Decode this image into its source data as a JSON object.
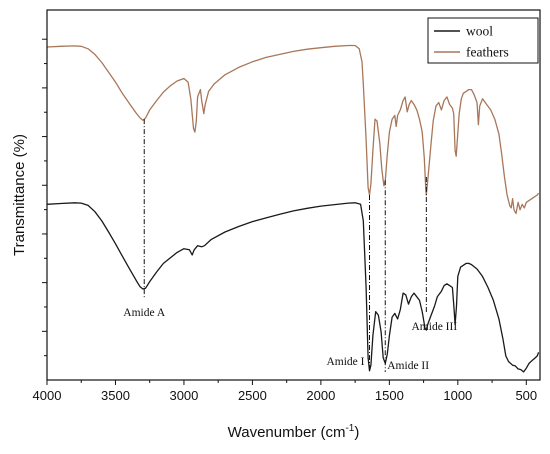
{
  "chart_data": {
    "type": "line",
    "xlabel": "Wavenumber (cm",
    "xlabel_sup": "-1",
    "xlabel_end": ")",
    "ylabel": "Transmittance (%)",
    "xlim": [
      4000,
      400
    ],
    "x_reversed": true,
    "x_ticks": [
      4000,
      3500,
      3000,
      2500,
      2000,
      1500,
      1000,
      500
    ],
    "y_ticks_labeled": false,
    "legend": {
      "position": "top-right"
    },
    "colors": {
      "wool": "#1a1a1a",
      "feathers": "#a8775a",
      "axis": "#111111"
    },
    "series": [
      {
        "name": "wool",
        "y_units": "relative transmittance (arbitrary, 0-100 plot scale)",
        "points": [
          [
            4000,
            47.5
          ],
          [
            3900,
            47.7
          ],
          [
            3800,
            47.9
          ],
          [
            3750,
            47.8
          ],
          [
            3700,
            47.2
          ],
          [
            3650,
            45.5
          ],
          [
            3600,
            43.0
          ],
          [
            3550,
            40.0
          ],
          [
            3500,
            36.8
          ],
          [
            3450,
            33.5
          ],
          [
            3400,
            30.2
          ],
          [
            3350,
            27.0
          ],
          [
            3320,
            25.2
          ],
          [
            3300,
            24.6
          ],
          [
            3280,
            24.8
          ],
          [
            3250,
            26.6
          ],
          [
            3200,
            29.2
          ],
          [
            3150,
            31.5
          ],
          [
            3100,
            33.0
          ],
          [
            3050,
            34.5
          ],
          [
            3000,
            35.5
          ],
          [
            2960,
            35.2
          ],
          [
            2940,
            33.8
          ],
          [
            2925,
            35.2
          ],
          [
            2900,
            36.3
          ],
          [
            2870,
            36.0
          ],
          [
            2850,
            36.3
          ],
          [
            2800,
            38.0
          ],
          [
            2700,
            40.0
          ],
          [
            2600,
            41.5
          ],
          [
            2500,
            42.8
          ],
          [
            2400,
            43.8
          ],
          [
            2300,
            44.8
          ],
          [
            2200,
            45.7
          ],
          [
            2100,
            46.4
          ],
          [
            2000,
            47.0
          ],
          [
            1900,
            47.4
          ],
          [
            1800,
            47.8
          ],
          [
            1750,
            47.9
          ],
          [
            1710,
            47.5
          ],
          [
            1690,
            43.0
          ],
          [
            1670,
            25.0
          ],
          [
            1655,
            6.0
          ],
          [
            1645,
            2.5
          ],
          [
            1635,
            4.0
          ],
          [
            1620,
            12.0
          ],
          [
            1600,
            18.5
          ],
          [
            1580,
            17.5
          ],
          [
            1560,
            13.0
          ],
          [
            1545,
            6.0
          ],
          [
            1530,
            4.5
          ],
          [
            1515,
            7.0
          ],
          [
            1500,
            12.0
          ],
          [
            1480,
            17.0
          ],
          [
            1460,
            18.0
          ],
          [
            1440,
            16.5
          ],
          [
            1420,
            19.0
          ],
          [
            1400,
            23.5
          ],
          [
            1380,
            23.0
          ],
          [
            1360,
            20.5
          ],
          [
            1340,
            22.5
          ],
          [
            1320,
            23.5
          ],
          [
            1300,
            22.5
          ],
          [
            1280,
            21.5
          ],
          [
            1260,
            18.5
          ],
          [
            1240,
            14.0
          ],
          [
            1230,
            13.5
          ],
          [
            1220,
            15.0
          ],
          [
            1200,
            17.0
          ],
          [
            1170,
            20.0
          ],
          [
            1150,
            22.5
          ],
          [
            1120,
            24.0
          ],
          [
            1100,
            25.5
          ],
          [
            1080,
            26.0
          ],
          [
            1060,
            25.5
          ],
          [
            1040,
            25.0
          ],
          [
            1030,
            20.5
          ],
          [
            1020,
            15.0
          ],
          [
            1010,
            20.0
          ],
          [
            1000,
            28.0
          ],
          [
            980,
            30.5
          ],
          [
            960,
            31.0
          ],
          [
            940,
            31.5
          ],
          [
            920,
            31.5
          ],
          [
            900,
            31.2
          ],
          [
            860,
            30.0
          ],
          [
            820,
            28.0
          ],
          [
            780,
            25.0
          ],
          [
            740,
            21.5
          ],
          [
            700,
            16.5
          ],
          [
            670,
            11.0
          ],
          [
            650,
            6.5
          ],
          [
            630,
            5.0
          ],
          [
            600,
            4.0
          ],
          [
            580,
            3.8
          ],
          [
            560,
            3.0
          ],
          [
            540,
            2.8
          ],
          [
            520,
            2.2
          ],
          [
            500,
            3.2
          ],
          [
            480,
            4.5
          ],
          [
            460,
            5.2
          ],
          [
            440,
            5.8
          ],
          [
            420,
            6.5
          ],
          [
            410,
            7.5
          ]
        ]
      },
      {
        "name": "feathers",
        "y_units": "relative transmittance (arbitrary, 0-100 plot scale)",
        "points": [
          [
            4000,
            90.0
          ],
          [
            3900,
            90.2
          ],
          [
            3800,
            90.3
          ],
          [
            3750,
            90.2
          ],
          [
            3700,
            89.5
          ],
          [
            3650,
            88.0
          ],
          [
            3600,
            85.8
          ],
          [
            3550,
            83.2
          ],
          [
            3500,
            80.5
          ],
          [
            3450,
            77.5
          ],
          [
            3400,
            74.8
          ],
          [
            3350,
            72.2
          ],
          [
            3320,
            70.8
          ],
          [
            3300,
            70.2
          ],
          [
            3280,
            70.8
          ],
          [
            3250,
            73.0
          ],
          [
            3200,
            75.5
          ],
          [
            3150,
            77.8
          ],
          [
            3100,
            79.5
          ],
          [
            3050,
            80.8
          ],
          [
            3000,
            81.5
          ],
          [
            2970,
            80.5
          ],
          [
            2950,
            76.0
          ],
          [
            2930,
            68.0
          ],
          [
            2920,
            67.0
          ],
          [
            2910,
            70.0
          ],
          [
            2900,
            76.5
          ],
          [
            2880,
            78.5
          ],
          [
            2870,
            75.5
          ],
          [
            2855,
            72.0
          ],
          [
            2845,
            74.5
          ],
          [
            2820,
            78.0
          ],
          [
            2780,
            80.0
          ],
          [
            2700,
            82.5
          ],
          [
            2600,
            84.5
          ],
          [
            2500,
            86.0
          ],
          [
            2400,
            87.2
          ],
          [
            2300,
            88.0
          ],
          [
            2200,
            88.8
          ],
          [
            2100,
            89.4
          ],
          [
            2000,
            89.8
          ],
          [
            1900,
            90.2
          ],
          [
            1800,
            90.4
          ],
          [
            1750,
            90.4
          ],
          [
            1720,
            89.5
          ],
          [
            1700,
            86.0
          ],
          [
            1690,
            80.0
          ],
          [
            1670,
            65.0
          ],
          [
            1655,
            52.0
          ],
          [
            1645,
            50.0
          ],
          [
            1635,
            53.0
          ],
          [
            1620,
            62.0
          ],
          [
            1605,
            70.5
          ],
          [
            1590,
            70.0
          ],
          [
            1570,
            64.0
          ],
          [
            1555,
            57.0
          ],
          [
            1540,
            52.5
          ],
          [
            1530,
            54.0
          ],
          [
            1515,
            61.0
          ],
          [
            1500,
            67.0
          ],
          [
            1480,
            70.5
          ],
          [
            1460,
            71.5
          ],
          [
            1450,
            68.5
          ],
          [
            1440,
            71.5
          ],
          [
            1420,
            73.0
          ],
          [
            1400,
            75.5
          ],
          [
            1385,
            76.5
          ],
          [
            1370,
            72.5
          ],
          [
            1355,
            74.5
          ],
          [
            1340,
            75.5
          ],
          [
            1320,
            74.5
          ],
          [
            1300,
            73.0
          ],
          [
            1280,
            70.5
          ],
          [
            1260,
            67.0
          ],
          [
            1245,
            60.0
          ],
          [
            1235,
            52.0
          ],
          [
            1230,
            50.0
          ],
          [
            1222,
            53.0
          ],
          [
            1210,
            58.0
          ],
          [
            1195,
            64.0
          ],
          [
            1180,
            70.0
          ],
          [
            1160,
            74.0
          ],
          [
            1140,
            75.0
          ],
          [
            1120,
            73.0
          ],
          [
            1100,
            75.5
          ],
          [
            1080,
            76.5
          ],
          [
            1060,
            74.5
          ],
          [
            1040,
            73.5
          ],
          [
            1030,
            72.0
          ],
          [
            1020,
            62.0
          ],
          [
            1012,
            60.5
          ],
          [
            1005,
            64.0
          ],
          [
            990,
            72.0
          ],
          [
            975,
            76.0
          ],
          [
            960,
            77.5
          ],
          [
            940,
            78.0
          ],
          [
            920,
            78.5
          ],
          [
            900,
            78.5
          ],
          [
            880,
            77.0
          ],
          [
            860,
            75.0
          ],
          [
            850,
            69.0
          ],
          [
            840,
            74.0
          ],
          [
            820,
            76.0
          ],
          [
            790,
            74.5
          ],
          [
            760,
            73.0
          ],
          [
            730,
            70.5
          ],
          [
            700,
            66.5
          ],
          [
            680,
            61.0
          ],
          [
            660,
            55.0
          ],
          [
            640,
            50.0
          ],
          [
            620,
            47.0
          ],
          [
            610,
            46.5
          ],
          [
            600,
            49.0
          ],
          [
            590,
            46.0
          ],
          [
            575,
            45.0
          ],
          [
            560,
            48.0
          ],
          [
            545,
            46.0
          ],
          [
            530,
            47.5
          ],
          [
            515,
            46.5
          ],
          [
            500,
            48.0
          ],
          [
            480,
            48.5
          ],
          [
            460,
            49.0
          ],
          [
            440,
            49.5
          ],
          [
            420,
            50.0
          ],
          [
            410,
            50.5
          ]
        ]
      }
    ],
    "annotations": [
      {
        "text": "Amide A",
        "x": 3290
      },
      {
        "text": "Amide I",
        "x": 1645
      },
      {
        "text": "Amide II",
        "x": 1530
      },
      {
        "text": "Amide III",
        "x": 1230
      }
    ]
  }
}
